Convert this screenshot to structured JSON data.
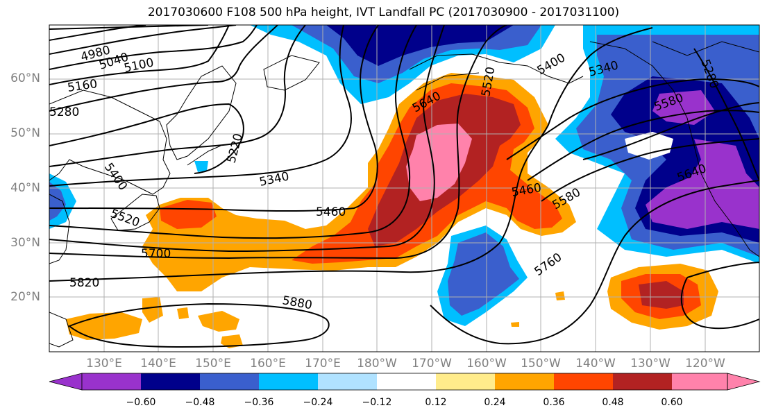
{
  "title": "2017030600 F108 500 hPa height, IVT Landfall PC (2017030900 - 2017031100)",
  "map": {
    "lat_labels": [
      "60°N",
      "50°N",
      "40°N",
      "30°N",
      "20°N"
    ],
    "lon_labels": [
      "130°E",
      "140°E",
      "150°E",
      "160°E",
      "170°E",
      "180°W",
      "170°W",
      "160°W",
      "150°W",
      "140°W",
      "130°W",
      "120°W"
    ],
    "height_contour_labels": [
      "4980",
      "5040",
      "5100",
      "5160",
      "5220",
      "5280",
      "5340",
      "5400",
      "5460",
      "5520",
      "5580",
      "5640",
      "5700",
      "5760",
      "5820",
      "5880",
      "5640",
      "5520",
      "5400",
      "5340",
      "5280",
      "5460",
      "5580",
      "5640",
      "5760"
    ],
    "contour_color": "#000000",
    "grid_color": "#b0b0b0"
  },
  "colorbar": {
    "tick_labels": [
      "−0.60",
      "−0.48",
      "−0.36",
      "−0.24",
      "−0.12",
      "0.12",
      "0.24",
      "0.36",
      "0.48",
      "0.60"
    ],
    "colors": [
      "#9932cc",
      "#00008b",
      "#3a5fcd",
      "#00bfff",
      "#b0e2ff",
      "#ffffff",
      "#ffec8b",
      "#ffa500",
      "#ff4500",
      "#b22222",
      "#ff82ab"
    ],
    "extend": "both"
  }
}
